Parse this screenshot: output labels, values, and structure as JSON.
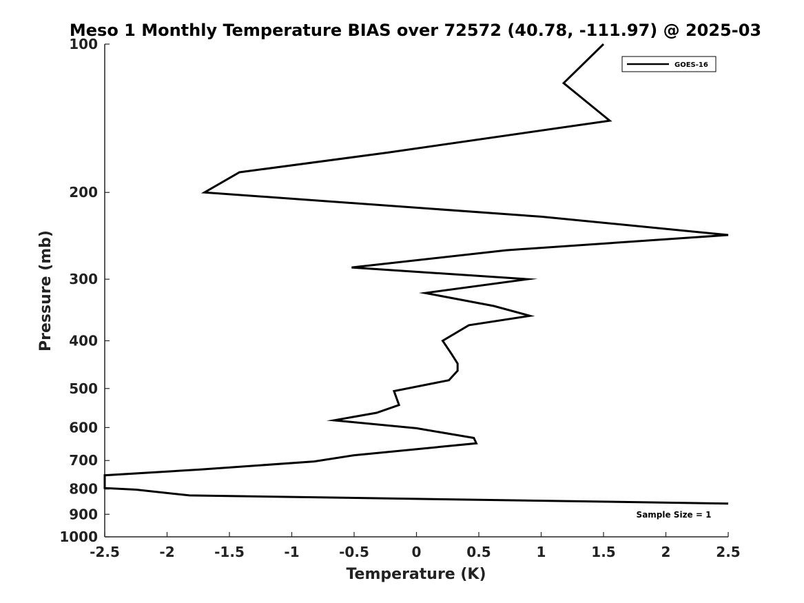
{
  "chart_data": {
    "type": "line",
    "title": "Meso 1 Monthly Temperature BIAS over 72572 (40.78, -111.97) @ 2025-03",
    "xlabel": "Temperature (K)",
    "ylabel": "Pressure (mb)",
    "xlim": [
      -2.5,
      2.5
    ],
    "ylim": [
      1000,
      100
    ],
    "yscale": "log",
    "xticks": [
      -2.5,
      -2,
      -1.5,
      -1,
      -0.5,
      0,
      0.5,
      1,
      1.5,
      2,
      2.5
    ],
    "xtick_labels": [
      "-2.5",
      "-2",
      "-1.5",
      "-1",
      "-0.5",
      "0",
      "0.5",
      "1",
      "1.5",
      "2",
      "2.5"
    ],
    "yticks": [
      100,
      200,
      300,
      400,
      500,
      600,
      700,
      800,
      900,
      1000
    ],
    "ytick_labels": [
      "100",
      "200",
      "300",
      "400",
      "500",
      "600",
      "700",
      "800",
      "900",
      "1000"
    ],
    "grid": false,
    "legend_position": "top-right",
    "annotation": "Sample Size = 1",
    "series": [
      {
        "name": "GOES-16",
        "color": "#000000",
        "points": [
          {
            "x": 1.5,
            "y": 100
          },
          {
            "x": 1.18,
            "y": 120
          },
          {
            "x": 1.55,
            "y": 143
          },
          {
            "x": -0.23,
            "y": 166
          },
          {
            "x": -1.42,
            "y": 182
          },
          {
            "x": -1.7,
            "y": 200
          },
          {
            "x": 1.0,
            "y": 224
          },
          {
            "x": 2.5,
            "y": 244
          },
          {
            "x": 0.72,
            "y": 262
          },
          {
            "x": -0.52,
            "y": 284
          },
          {
            "x": 0.89,
            "y": 300
          },
          {
            "x": 0.07,
            "y": 320
          },
          {
            "x": 0.62,
            "y": 340
          },
          {
            "x": 0.91,
            "y": 356
          },
          {
            "x": 0.42,
            "y": 372
          },
          {
            "x": 0.21,
            "y": 400
          },
          {
            "x": 0.28,
            "y": 425
          },
          {
            "x": 0.33,
            "y": 445
          },
          {
            "x": 0.33,
            "y": 460
          },
          {
            "x": 0.26,
            "y": 481
          },
          {
            "x": -0.18,
            "y": 506
          },
          {
            "x": -0.14,
            "y": 540
          },
          {
            "x": -0.32,
            "y": 560
          },
          {
            "x": -0.66,
            "y": 580
          },
          {
            "x": 0.0,
            "y": 602
          },
          {
            "x": 0.46,
            "y": 630
          },
          {
            "x": 0.48,
            "y": 646
          },
          {
            "x": -0.5,
            "y": 683
          },
          {
            "x": -0.82,
            "y": 703
          },
          {
            "x": -1.73,
            "y": 730
          },
          {
            "x": -2.5,
            "y": 750
          },
          {
            "x": -2.5,
            "y": 796
          },
          {
            "x": -2.25,
            "y": 802
          },
          {
            "x": -1.82,
            "y": 824
          },
          {
            "x": 2.5,
            "y": 856
          }
        ]
      }
    ]
  }
}
